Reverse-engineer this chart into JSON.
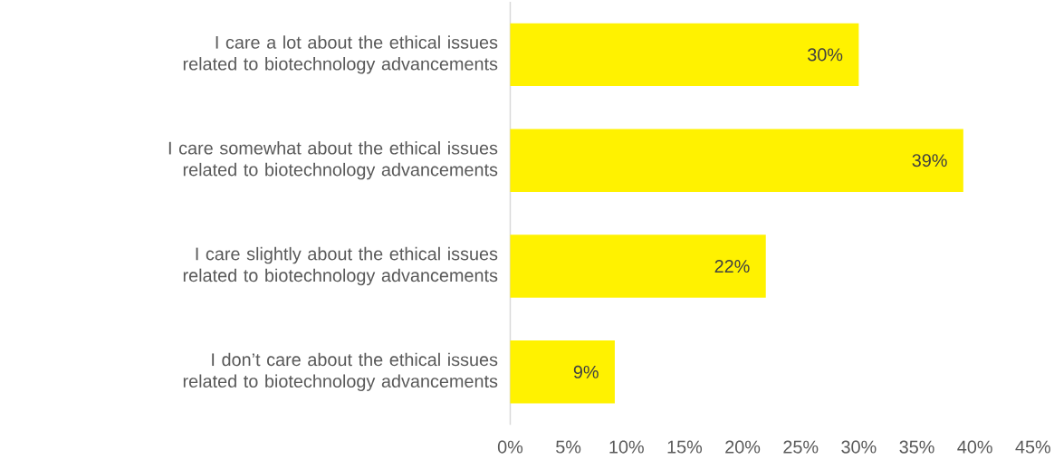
{
  "chart_data": {
    "type": "bar",
    "orientation": "horizontal",
    "color": "#fff200",
    "categories": [
      "I care a lot about the ethical issues related to biotechnology advancements",
      "I care somewhat about the ethical issues related to biotechnology advancements",
      "I care slightly about the ethical issues related to biotechnology advancements",
      "I don’t care about the ethical issues related to biotechnology advancements"
    ],
    "values": [
      30,
      39,
      22,
      9
    ],
    "value_labels": [
      "30%",
      "39%",
      "22%",
      "9%"
    ],
    "xlim": [
      0,
      45
    ],
    "xticks": [
      {
        "value": 0,
        "label": "0%"
      },
      {
        "value": 5,
        "label": "5%"
      },
      {
        "value": 10,
        "label": "10%"
      },
      {
        "value": 15,
        "label": "15%"
      },
      {
        "value": 20,
        "label": "20%"
      },
      {
        "value": 25,
        "label": "25%"
      },
      {
        "value": 30,
        "label": "30%"
      },
      {
        "value": 35,
        "label": "35%"
      },
      {
        "value": 40,
        "label": "40%"
      },
      {
        "value": 45,
        "label": "45%"
      }
    ]
  }
}
